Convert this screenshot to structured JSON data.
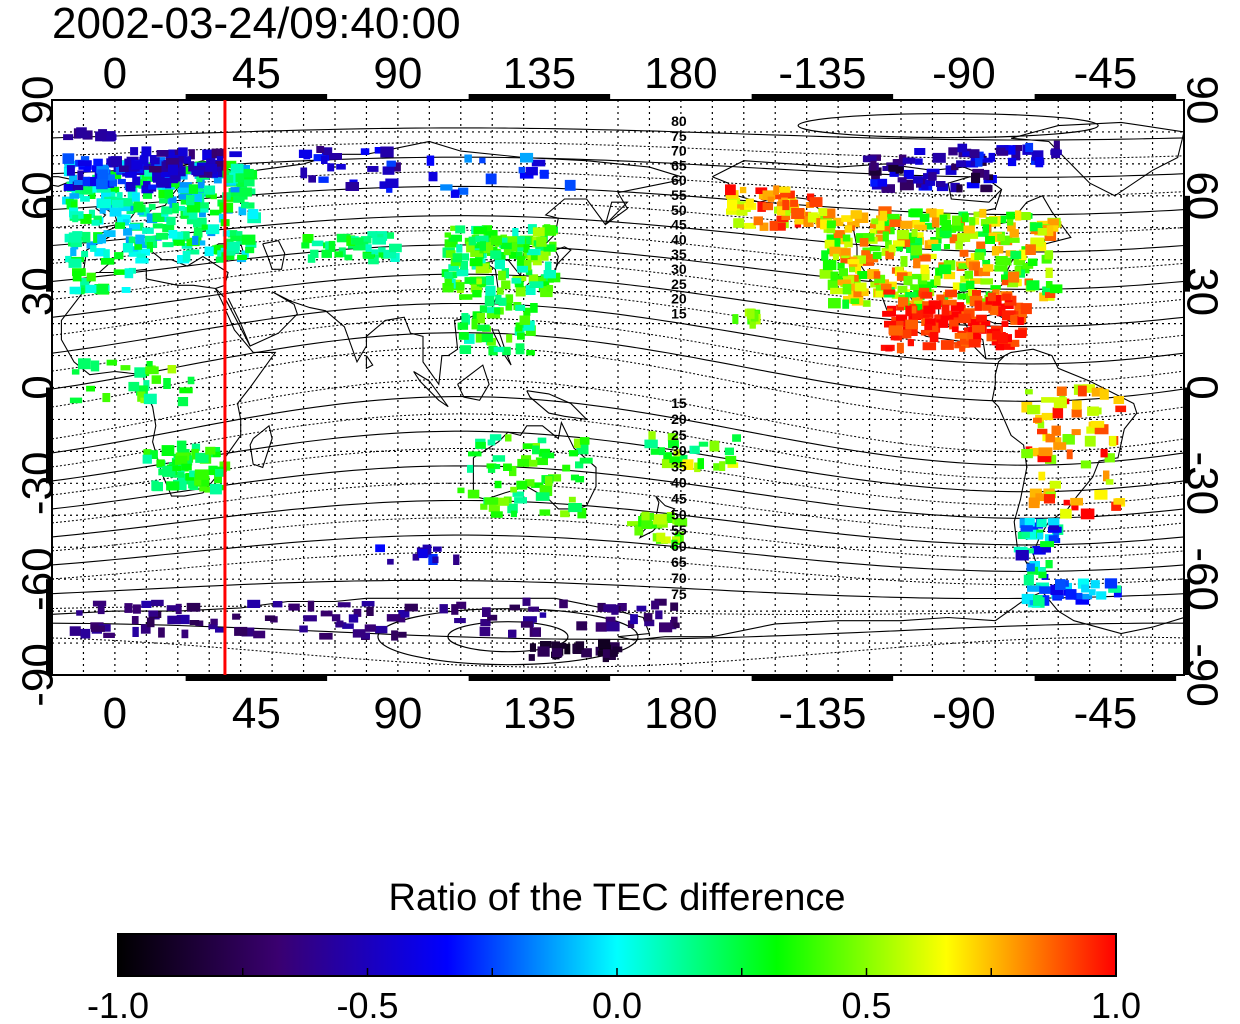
{
  "title": "2002-03-24/09:40:00",
  "map": {
    "lon_ticks": [
      "0",
      "45",
      "90",
      "135",
      "180",
      "-135",
      "-90",
      "-45"
    ],
    "lat_ticks": [
      "90",
      "60",
      "30",
      "0",
      "-30",
      "-60",
      "-90"
    ],
    "lon_range": [
      -20,
      340
    ],
    "lat_range": [
      -90,
      90
    ],
    "grid": "dotted, every 10 degrees",
    "marker_line_longitude": 35,
    "marker_line_color": "#ff0000",
    "contour_labels_north": [
      "80",
      "75",
      "70",
      "65",
      "60",
      "55",
      "50",
      "45",
      "40",
      "35",
      "30",
      "25",
      "20",
      "15"
    ],
    "contour_labels_south": [
      "15",
      "20",
      "25",
      "30",
      "35",
      "40",
      "45",
      "50",
      "55",
      "60",
      "65",
      "70",
      "75"
    ]
  },
  "colorbar": {
    "title": "Ratio of the TEC difference",
    "ticks": [
      "-1.0",
      "-0.5",
      "0.0",
      "0.5",
      "1.0"
    ],
    "range": [
      -1.0,
      1.0
    ],
    "colors": [
      "#000000",
      "#3a0070",
      "#0000ff",
      "#00ffff",
      "#00ff00",
      "#ffff00",
      "#ff0000"
    ]
  }
}
